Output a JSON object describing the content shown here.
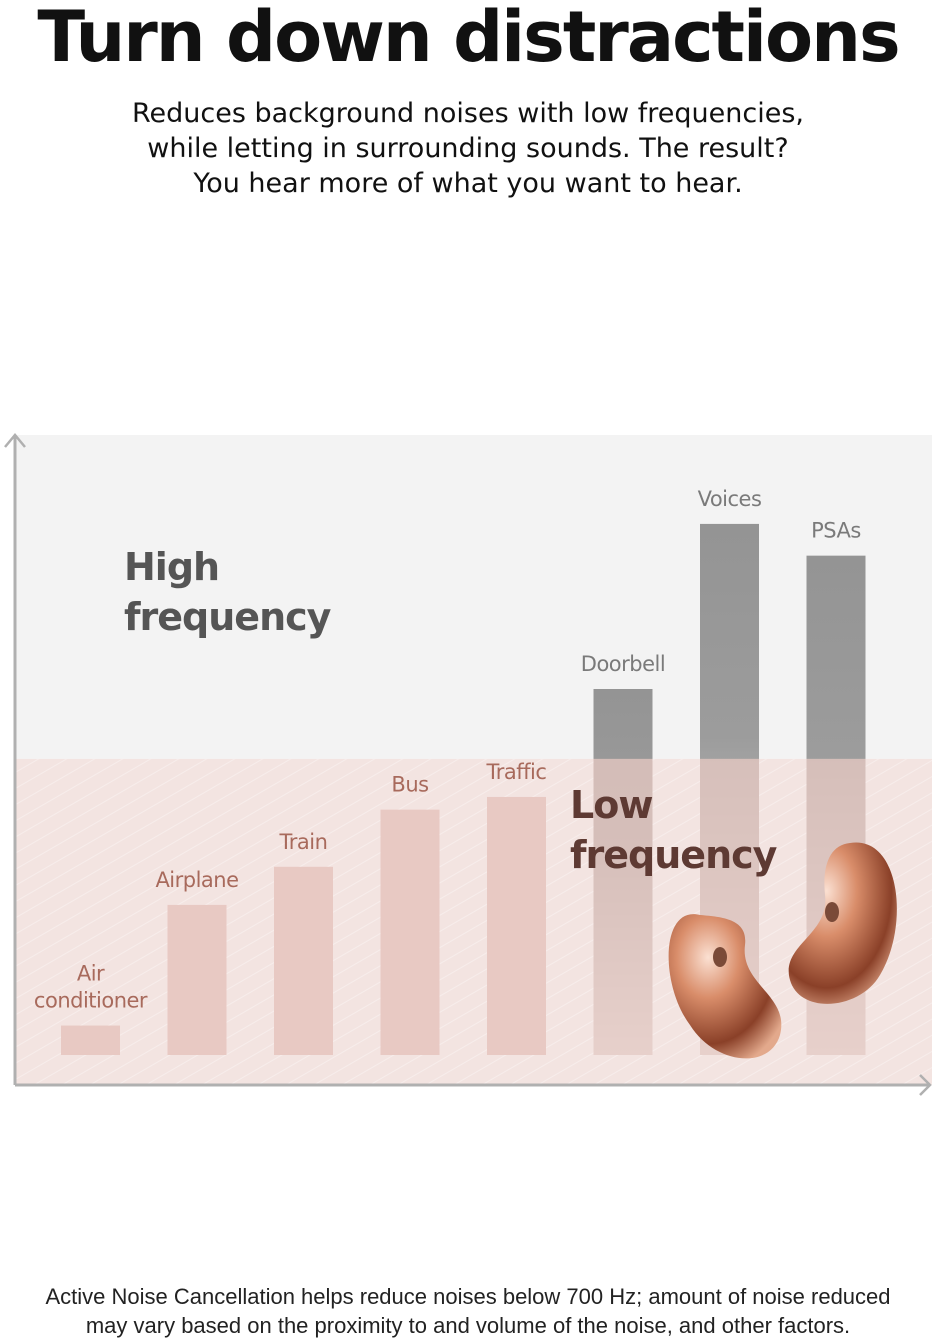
{
  "header": {
    "title": "Turn down distractions",
    "subtitle_lines": [
      "Reduces background noises with low frequencies,",
      "while letting in surrounding sounds. The result?",
      "You hear more of what you want to hear."
    ]
  },
  "chart_data": {
    "type": "bar",
    "title": "",
    "xlabel": "",
    "ylabel": "",
    "ylim": [
      0,
      100
    ],
    "grid": false,
    "categories": [
      "Air conditioner",
      "Airplane",
      "Train",
      "Bus",
      "Traffic",
      "Doorbell",
      "Voices",
      "PSAs"
    ],
    "values": [
      7,
      26,
      32,
      41,
      43,
      60,
      86,
      81
    ],
    "groups": [
      "low",
      "low",
      "low",
      "low",
      "low",
      "high",
      "high",
      "high"
    ],
    "bands": [
      {
        "label_lines": [
          "High",
          "frequency"
        ],
        "from": 49,
        "to": 100,
        "color": "#f3f3f3"
      },
      {
        "label_lines": [
          "Low",
          "frequency"
        ],
        "from": 0,
        "to": 49,
        "color": "#f3e4e1"
      }
    ],
    "colors": {
      "low_bar": "#e8c9c3",
      "high_bar_top": "#949494",
      "high_bar_bottom": "#e0e0e0",
      "low_label": "#a86a5c",
      "high_label": "#7a7a7a",
      "band_label_low": "#5e3a33",
      "band_label_high": "#555555",
      "axis": "#b0b0b0"
    }
  },
  "footnote_lines": [
    "Active Noise Cancellation helps reduce noises below 700 Hz; amount of noise reduced",
    "may vary based on the proximity to and volume of the noise, and other factors."
  ]
}
